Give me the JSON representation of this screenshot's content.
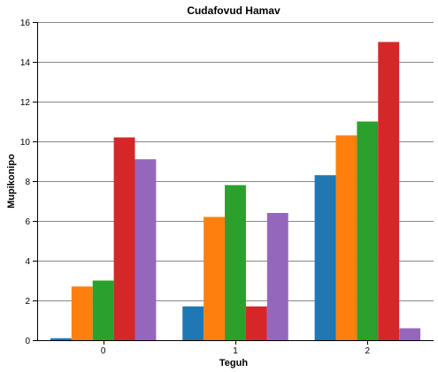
{
  "chart_data": {
    "type": "bar",
    "title": "Cudafovud Hamav",
    "xlabel": "Teguh",
    "ylabel": "Mupikonipo",
    "categories": [
      "0",
      "1",
      "2"
    ],
    "ylim": [
      0,
      16
    ],
    "yticks": [
      0,
      2,
      4,
      6,
      8,
      10,
      12,
      14,
      16
    ],
    "grid": true,
    "legend": "none",
    "series": [
      {
        "color": "#1f77b4",
        "values": [
          0.1,
          1.7,
          8.3
        ]
      },
      {
        "color": "#ff7f0e",
        "values": [
          2.7,
          6.2,
          10.3
        ]
      },
      {
        "color": "#2ca02c",
        "values": [
          3.0,
          7.8,
          11.0
        ]
      },
      {
        "color": "#d62728",
        "values": [
          10.2,
          1.7,
          15.0
        ]
      },
      {
        "color": "#9467bd",
        "values": [
          9.1,
          6.4,
          0.6
        ]
      }
    ]
  }
}
